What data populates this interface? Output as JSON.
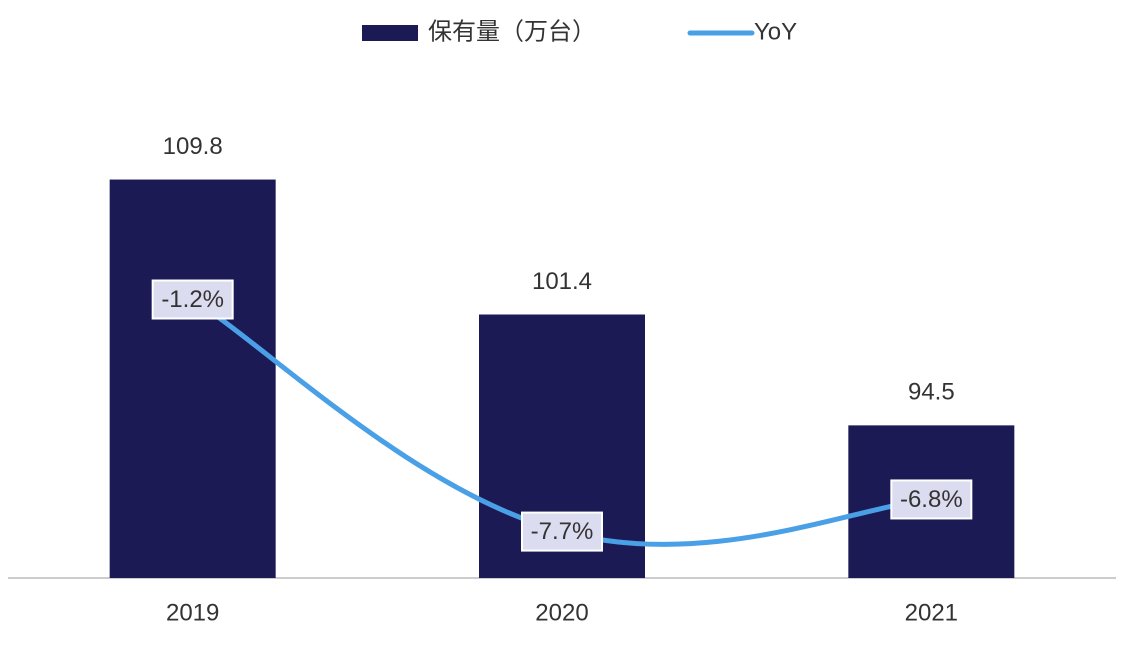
{
  "chart_data": {
    "type": "bar_line",
    "categories": [
      "2019",
      "2020",
      "2021"
    ],
    "series": [
      {
        "name": "保有量（万台）",
        "type": "bar",
        "color": "#1b1a55",
        "values": [
          109.8,
          101.4,
          94.5
        ]
      },
      {
        "name": "YoY",
        "type": "line",
        "axis": "y2",
        "color": "#4aa0e6",
        "values": [
          -1.2,
          -7.7,
          -6.8
        ],
        "value_labels": [
          "-1.2%",
          "-7.7%",
          "-6.8%"
        ]
      }
    ],
    "ylim": [
      85,
      115
    ],
    "y2lim": [
      -9,
      4.5
    ],
    "legend": "top"
  }
}
